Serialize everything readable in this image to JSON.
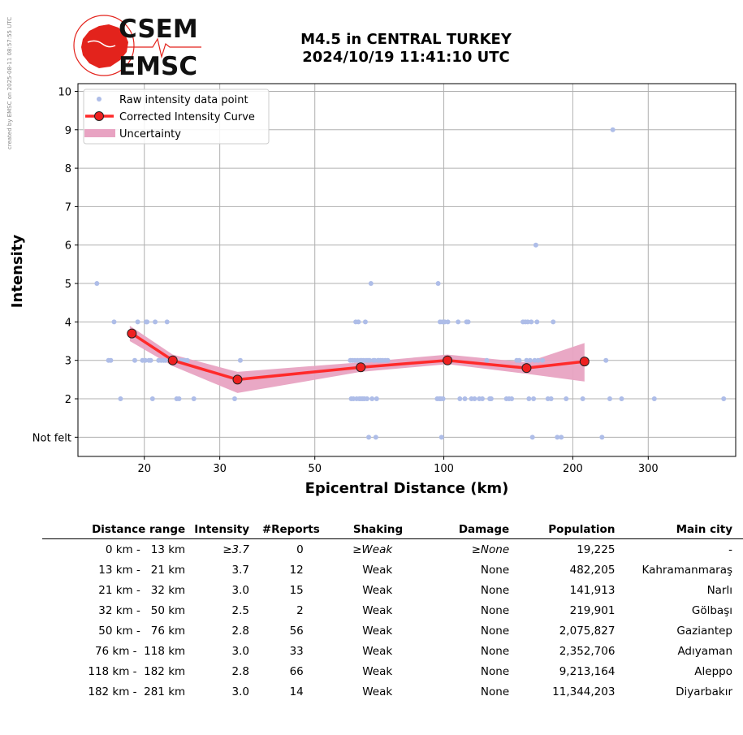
{
  "watermark": "created by EMSC on 2025-08-11 08:57:55 UTC",
  "logo": {
    "line1": "CSEM",
    "line2": "EMSC",
    "color": "#e3231c"
  },
  "header": {
    "title_line1": "M4.5 in CENTRAL TURKEY",
    "title_line2": "2024/10/19 11:41:10 UTC"
  },
  "chart_data": {
    "type": "scatter",
    "xlabel": "Epicentral Distance (km)",
    "ylabel": "Intensity",
    "x_scale": "log",
    "xlim": [
      14,
      480
    ],
    "ylim": [
      0.5,
      10.2
    ],
    "x_ticks": [
      20,
      30,
      50,
      100,
      200,
      300
    ],
    "y_ticks": [
      {
        "v": 1,
        "label": "Not felt"
      },
      {
        "v": 2,
        "label": "2"
      },
      {
        "v": 3,
        "label": "3"
      },
      {
        "v": 4,
        "label": "4"
      },
      {
        "v": 5,
        "label": "5"
      },
      {
        "v": 6,
        "label": "6"
      },
      {
        "v": 7,
        "label": "7"
      },
      {
        "v": 8,
        "label": "8"
      },
      {
        "v": 9,
        "label": "9"
      },
      {
        "v": 10,
        "label": "10"
      }
    ],
    "grid": true,
    "legend": {
      "placement": "top-left",
      "entries": [
        "Raw intensity data point",
        "Corrected Intensity Curve",
        "Uncertainty"
      ]
    },
    "colors": {
      "raw": "#aebde8",
      "curve": "#ff2a2a",
      "marker_fill": "#ee2020",
      "band": "#e8a3c2",
      "grid": "#b0b0b0"
    },
    "raw_points": [
      [
        15.5,
        5
      ],
      [
        16.5,
        3
      ],
      [
        16.7,
        3
      ],
      [
        17,
        4
      ],
      [
        17.6,
        2
      ],
      [
        19,
        3
      ],
      [
        19.3,
        4
      ],
      [
        19.8,
        3
      ],
      [
        20.1,
        3
      ],
      [
        20.2,
        4
      ],
      [
        20.3,
        4
      ],
      [
        20.5,
        3
      ],
      [
        20.7,
        3
      ],
      [
        20.9,
        2
      ],
      [
        21.2,
        4
      ],
      [
        21.6,
        3
      ],
      [
        21.9,
        3
      ],
      [
        22.2,
        3
      ],
      [
        22.4,
        3
      ],
      [
        22.6,
        4
      ],
      [
        23,
        3
      ],
      [
        23.5,
        3
      ],
      [
        23.8,
        2
      ],
      [
        24.1,
        2
      ],
      [
        24.4,
        3
      ],
      [
        24.8,
        3
      ],
      [
        25.2,
        3
      ],
      [
        26.1,
        2
      ],
      [
        32.5,
        2
      ],
      [
        33.5,
        3
      ],
      [
        60.5,
        3
      ],
      [
        60.8,
        2
      ],
      [
        61.2,
        3
      ],
      [
        61.5,
        2
      ],
      [
        62,
        3
      ],
      [
        62.3,
        4
      ],
      [
        62.6,
        2
      ],
      [
        62.9,
        3
      ],
      [
        63.2,
        4
      ],
      [
        63.5,
        2
      ],
      [
        63.8,
        3
      ],
      [
        64.1,
        2
      ],
      [
        64.4,
        3
      ],
      [
        64.7,
        2
      ],
      [
        65,
        3
      ],
      [
        65.3,
        2
      ],
      [
        65.6,
        4
      ],
      [
        65.9,
        3
      ],
      [
        66.2,
        2
      ],
      [
        66.5,
        3
      ],
      [
        66.8,
        1
      ],
      [
        67.1,
        3
      ],
      [
        67.6,
        5
      ],
      [
        68,
        2
      ],
      [
        68.5,
        3
      ],
      [
        69,
        3
      ],
      [
        69.4,
        1
      ],
      [
        69.7,
        2
      ],
      [
        70.2,
        3
      ],
      [
        70.6,
        3
      ],
      [
        71.2,
        3
      ],
      [
        72,
        3
      ],
      [
        73,
        3
      ],
      [
        74,
        3
      ],
      [
        96.5,
        2
      ],
      [
        97,
        5
      ],
      [
        97.6,
        2
      ],
      [
        98,
        4
      ],
      [
        98.4,
        2
      ],
      [
        98.8,
        1
      ],
      [
        99.2,
        4
      ],
      [
        99.6,
        2
      ],
      [
        100.5,
        4
      ],
      [
        101.5,
        3
      ],
      [
        102.2,
        4
      ],
      [
        108,
        4
      ],
      [
        109,
        2
      ],
      [
        112,
        2
      ],
      [
        113,
        4
      ],
      [
        114,
        4
      ],
      [
        116,
        2
      ],
      [
        118,
        2
      ],
      [
        121,
        2
      ],
      [
        123,
        2
      ],
      [
        126,
        3
      ],
      [
        128,
        2
      ],
      [
        129,
        2
      ],
      [
        140,
        2
      ],
      [
        142,
        2
      ],
      [
        144,
        2
      ],
      [
        148,
        3
      ],
      [
        150,
        3
      ],
      [
        153,
        4
      ],
      [
        155,
        4
      ],
      [
        156,
        3
      ],
      [
        157,
        4
      ],
      [
        158,
        2
      ],
      [
        159,
        3
      ],
      [
        160,
        4
      ],
      [
        161,
        1
      ],
      [
        162,
        2
      ],
      [
        163,
        3
      ],
      [
        164,
        6
      ],
      [
        165,
        4
      ],
      [
        166,
        3
      ],
      [
        170,
        3
      ],
      [
        175,
        2
      ],
      [
        178,
        2
      ],
      [
        180,
        4
      ],
      [
        184,
        1
      ],
      [
        188,
        1
      ],
      [
        193,
        2
      ],
      [
        211,
        2
      ],
      [
        234,
        1
      ],
      [
        239,
        3
      ],
      [
        244,
        2
      ],
      [
        248,
        9
      ],
      [
        260,
        2
      ],
      [
        310,
        2
      ],
      [
        450,
        2
      ]
    ],
    "curve": [
      {
        "x": 18.7,
        "y": 3.7
      },
      {
        "x": 23.3,
        "y": 3.0
      },
      {
        "x": 33.0,
        "y": 2.5
      },
      {
        "x": 64.0,
        "y": 2.82
      },
      {
        "x": 102.0,
        "y": 3.0
      },
      {
        "x": 156.0,
        "y": 2.8
      },
      {
        "x": 213.0,
        "y": 2.97
      }
    ],
    "band": [
      {
        "x": 18.5,
        "lo": 3.5,
        "hi": 3.9
      },
      {
        "x": 23.3,
        "lo": 2.85,
        "hi": 3.15
      },
      {
        "x": 33.0,
        "lo": 2.15,
        "hi": 2.7
      },
      {
        "x": 64.0,
        "lo": 2.7,
        "hi": 2.95
      },
      {
        "x": 102.0,
        "lo": 2.9,
        "hi": 3.15
      },
      {
        "x": 156.0,
        "lo": 2.65,
        "hi": 2.95
      },
      {
        "x": 213.0,
        "lo": 2.45,
        "hi": 3.45
      }
    ]
  },
  "table": {
    "headers": [
      "Distance range",
      "Intensity",
      "#Reports",
      "Shaking",
      "Damage",
      "Population",
      "Main city"
    ],
    "rows": [
      {
        "range": "0 km -   13 km",
        "intensity": "≥3.7",
        "reports": "0",
        "shaking": "≥Weak",
        "damage": "≥None",
        "population": "19,225",
        "city": "-"
      },
      {
        "range": "13 km -   21 km",
        "intensity": "3.7",
        "reports": "12",
        "shaking": "Weak",
        "damage": "None",
        "population": "482,205",
        "city": "Kahramanmaraş"
      },
      {
        "range": "21 km -   32 km",
        "intensity": "3.0",
        "reports": "15",
        "shaking": "Weak",
        "damage": "None",
        "population": "141,913",
        "city": "Narlı"
      },
      {
        "range": "32 km -   50 km",
        "intensity": "2.5",
        "reports": "2",
        "shaking": "Weak",
        "damage": "None",
        "population": "219,901",
        "city": "Gölbaşı"
      },
      {
        "range": "50 km -   76 km",
        "intensity": "2.8",
        "reports": "56",
        "shaking": "Weak",
        "damage": "None",
        "population": "2,075,827",
        "city": "Gaziantep"
      },
      {
        "range": "76 km -  118 km",
        "intensity": "3.0",
        "reports": "33",
        "shaking": "Weak",
        "damage": "None",
        "population": "2,352,706",
        "city": "Adıyaman"
      },
      {
        "range": "118 km -  182 km",
        "intensity": "2.8",
        "reports": "66",
        "shaking": "Weak",
        "damage": "None",
        "population": "9,213,164",
        "city": "Aleppo"
      },
      {
        "range": "182 km -  281 km",
        "intensity": "3.0",
        "reports": "14",
        "shaking": "Weak",
        "damage": "None",
        "population": "11,344,203",
        "city": "Diyarbakır"
      }
    ]
  }
}
